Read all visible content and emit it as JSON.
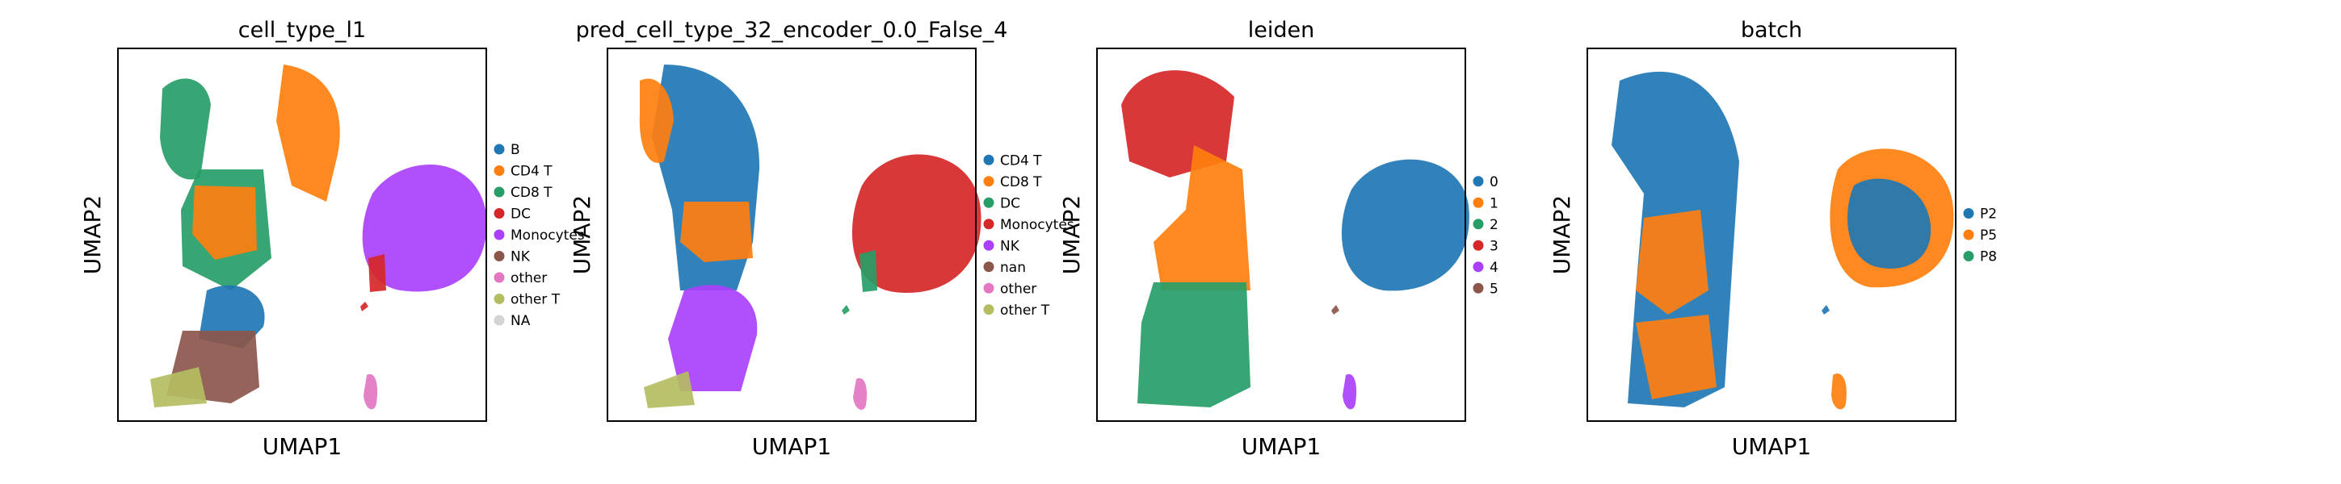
{
  "figure_kind": "UMAP embedding scatter panels",
  "chart_data": [
    {
      "type": "scatter",
      "title": "cell_type_l1",
      "xlabel": "UMAP1",
      "ylabel": "UMAP2",
      "grid": false,
      "legend_position": "right",
      "legend": [
        {
          "label": "B",
          "color": "#1f77b4"
        },
        {
          "label": "CD4 T",
          "color": "#ff7f0e"
        },
        {
          "label": "CD8 T",
          "color": "#279e68"
        },
        {
          "label": "DC",
          "color": "#d62728"
        },
        {
          "label": "Monocytes",
          "color": "#aa40fc"
        },
        {
          "label": "NK",
          "color": "#8c564b"
        },
        {
          "label": "other",
          "color": "#e377c2"
        },
        {
          "label": "other T",
          "color": "#b5bd61"
        },
        {
          "label": "NA",
          "color": "#d3d3d3"
        }
      ]
    },
    {
      "type": "scatter",
      "title": "pred_cell_type_32_encoder_0.0_False_4",
      "xlabel": "UMAP1",
      "ylabel": "UMAP2",
      "grid": false,
      "legend_position": "right",
      "legend": [
        {
          "label": "CD4 T",
          "color": "#1f77b4"
        },
        {
          "label": "CD8 T",
          "color": "#ff7f0e"
        },
        {
          "label": "DC",
          "color": "#279e68"
        },
        {
          "label": "Monocytes",
          "color": "#d62728"
        },
        {
          "label": "NK",
          "color": "#aa40fc"
        },
        {
          "label": "nan",
          "color": "#8c564b"
        },
        {
          "label": "other",
          "color": "#e377c2"
        },
        {
          "label": "other T",
          "color": "#b5bd61"
        }
      ]
    },
    {
      "type": "scatter",
      "title": "leiden",
      "xlabel": "UMAP1",
      "ylabel": "UMAP2",
      "grid": false,
      "legend_position": "right",
      "legend": [
        {
          "label": "0",
          "color": "#1f77b4"
        },
        {
          "label": "1",
          "color": "#ff7f0e"
        },
        {
          "label": "2",
          "color": "#279e68"
        },
        {
          "label": "3",
          "color": "#d62728"
        },
        {
          "label": "4",
          "color": "#aa40fc"
        },
        {
          "label": "5",
          "color": "#8c564b"
        }
      ]
    },
    {
      "type": "scatter",
      "title": "batch",
      "xlabel": "UMAP1",
      "ylabel": "UMAP2",
      "grid": false,
      "legend_position": "right",
      "legend": [
        {
          "label": "P2",
          "color": "#1f77b4"
        },
        {
          "label": "P5",
          "color": "#ff7f0e"
        },
        {
          "label": "P8",
          "color": "#279e68"
        }
      ]
    }
  ]
}
